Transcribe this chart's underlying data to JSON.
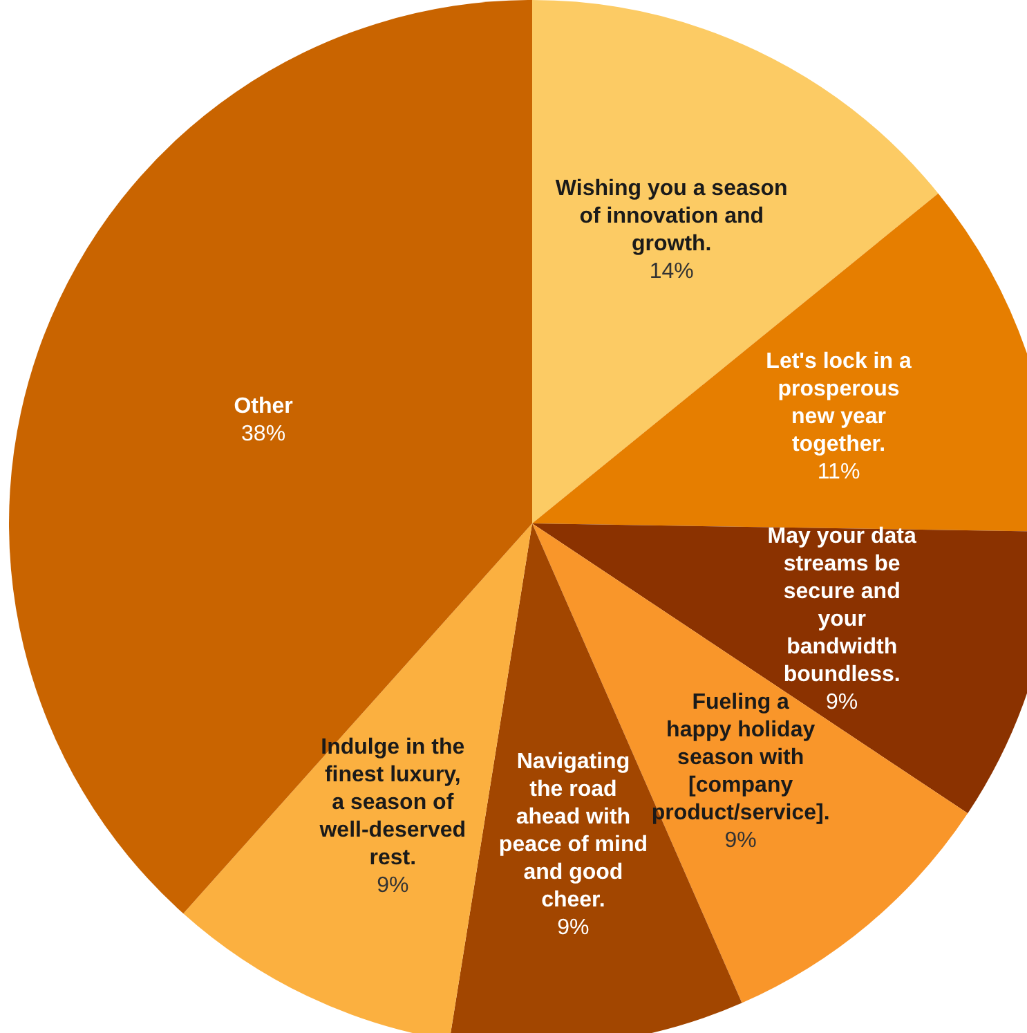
{
  "chart_data": {
    "type": "pie",
    "categories": [
      "Wishing you a season of innovation and growth.",
      "Let's lock in a prosperous new year together.",
      "May your data streams be secure and your bandwidth boundless.",
      "Fueling a happy holiday season with [company product/service].",
      "Navigating the road ahead with peace of mind and good cheer.",
      "Indulge in the finest luxury, a season of well-deserved rest.",
      "Other"
    ],
    "values": [
      14,
      11,
      9,
      9,
      9,
      9,
      38
    ],
    "value_labels": [
      "14%",
      "11%",
      "9%",
      "9%",
      "9%",
      "9%",
      "38%"
    ],
    "colors": [
      "#fccb64",
      "#e67e00",
      "#8b3200",
      "#f9962a",
      "#a24600",
      "#fbb040",
      "#c96400"
    ],
    "legend": false
  }
}
